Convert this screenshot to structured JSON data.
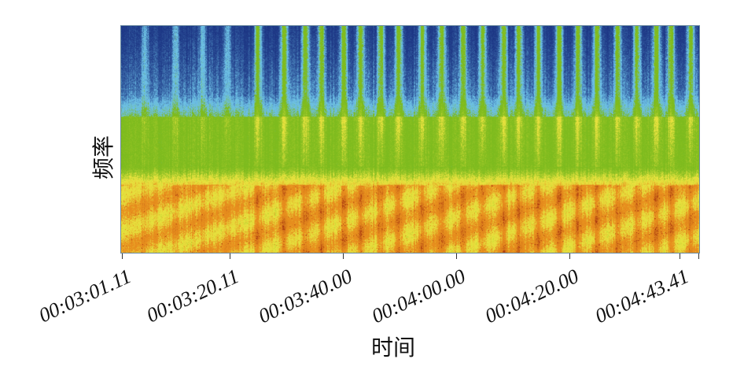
{
  "chart_data": {
    "type": "heatmap",
    "title": "",
    "xlabel": "时间",
    "ylabel": "频率",
    "xticks": [
      "00:03:01.11",
      "00:03:20.11",
      "00:03:40.00",
      "00:04:00.00",
      "00:04:20.00",
      "00:04:43.41"
    ],
    "xlim": [
      "00:03:01.11",
      "00:04:45.00"
    ],
    "yticks": [],
    "grid": false,
    "legend": "none",
    "colormap": [
      "#1c3584",
      "#6cbfe6",
      "#7dbb1e",
      "#e6e23e",
      "#e8901e",
      "#a4300e"
    ]
  }
}
